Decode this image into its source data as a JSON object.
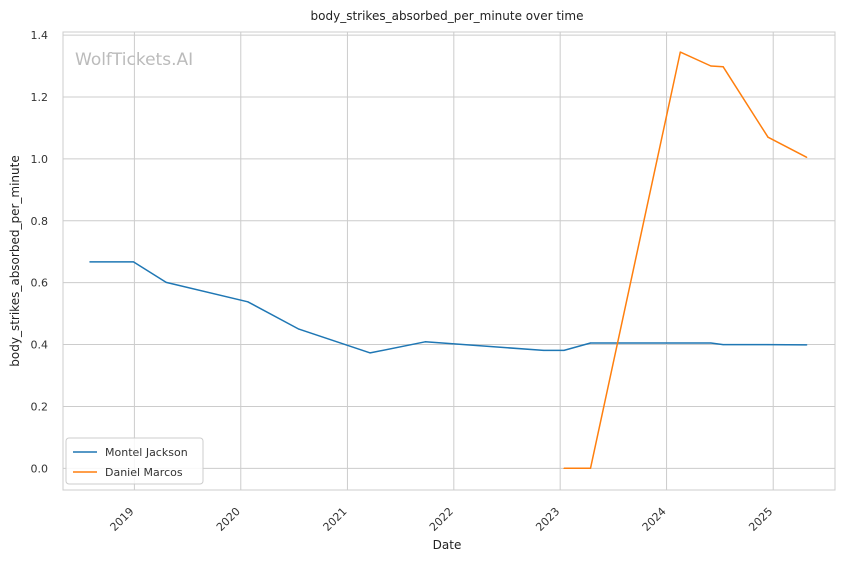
{
  "watermark": "WolfTickets.AI",
  "chart_data": {
    "type": "line",
    "title": "body_strikes_absorbed_per_minute over time",
    "xlabel": "Date",
    "ylabel": "body_strikes_absorbed_per_minute",
    "x_ticks": [
      "2019",
      "2020",
      "2021",
      "2022",
      "2023",
      "2024",
      "2025"
    ],
    "y_ticks": [
      "0.0",
      "0.2",
      "0.4",
      "0.6",
      "0.8",
      "1.0",
      "1.2",
      "1.4"
    ],
    "xlim": [
      "2018-05-01",
      "2025-08-01"
    ],
    "ylim": [
      -0.07,
      1.41
    ],
    "grid": true,
    "legend_position": "lower-left",
    "series": [
      {
        "name": "Montel Jackson",
        "color": "#1f77b4",
        "points": [
          [
            "2018-08-01",
            0.667
          ],
          [
            "2018-12-29",
            0.667
          ],
          [
            "2019-04-20",
            0.601
          ],
          [
            "2020-01-25",
            0.538
          ],
          [
            "2020-07-18",
            0.45
          ],
          [
            "2021-03-20",
            0.373
          ],
          [
            "2021-09-25",
            0.409
          ],
          [
            "2022-11-05",
            0.381
          ],
          [
            "2023-01-14",
            0.381
          ],
          [
            "2023-04-15",
            0.405
          ],
          [
            "2024-06-01",
            0.405
          ],
          [
            "2024-07-13",
            0.4
          ],
          [
            "2024-12-14",
            0.4
          ],
          [
            "2025-04-26",
            0.399
          ]
        ]
      },
      {
        "name": "Daniel Marcos",
        "color": "#ff7f0e",
        "points": [
          [
            "2023-01-14",
            0.0
          ],
          [
            "2023-04-15",
            0.0
          ],
          [
            "2024-02-17",
            1.345
          ],
          [
            "2024-06-01",
            1.3
          ],
          [
            "2024-07-13",
            1.298
          ],
          [
            "2024-12-14",
            1.07
          ],
          [
            "2025-04-26",
            1.005
          ]
        ]
      }
    ]
  }
}
